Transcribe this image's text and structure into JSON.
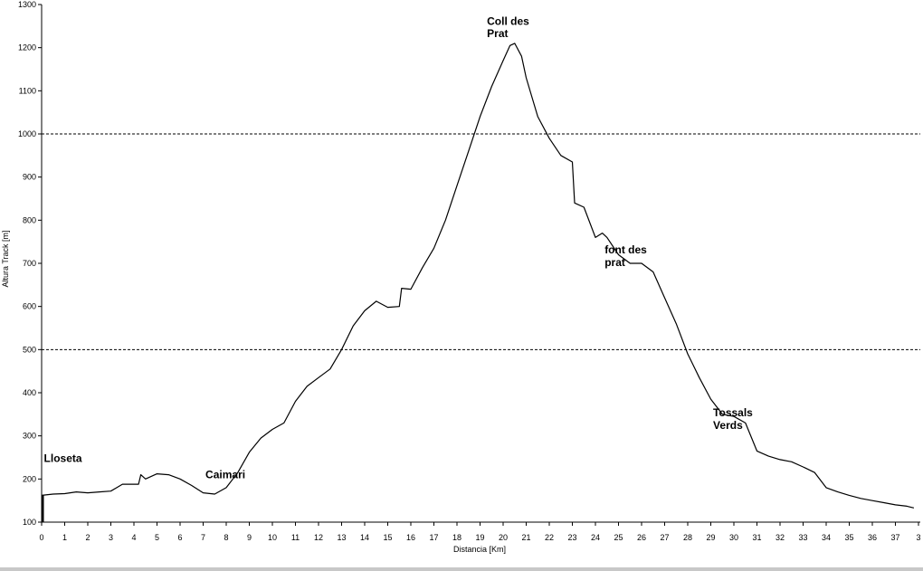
{
  "chart_data": {
    "type": "line",
    "title": "",
    "xlabel": "Distancia [Km]",
    "ylabel": "Altura Track [m]",
    "xlim": [
      0,
      38
    ],
    "ylim": [
      100,
      1300
    ],
    "x_ticks": [
      "0",
      "1",
      "2",
      "3",
      "4",
      "5",
      "6",
      "7",
      "8",
      "9",
      "10",
      "11",
      "12",
      "13",
      "14",
      "15",
      "16",
      "17",
      "18",
      "19",
      "20",
      "21",
      "22",
      "23",
      "24",
      "25",
      "26",
      "27",
      "28",
      "29",
      "30",
      "31",
      "32",
      "33",
      "34",
      "35",
      "36",
      "37",
      "3"
    ],
    "y_ticks": [
      100,
      200,
      300,
      400,
      500,
      600,
      700,
      800,
      900,
      1000,
      1100,
      1200,
      1300
    ],
    "grid": {
      "horizontal_dashed_at": [
        500,
        1000
      ],
      "vertical": false
    },
    "legend": "none",
    "line_color": "#000000",
    "series": [
      {
        "x": [
          0,
          0.5,
          1,
          1.5,
          2,
          2.5,
          3,
          3.5,
          4.2,
          4.3,
          4.5,
          5,
          5.5,
          6,
          6.5,
          7,
          7.5,
          8,
          8.5,
          9,
          9.5,
          10,
          10.5,
          11,
          11.5,
          12,
          12.5,
          13,
          13.5,
          14,
          14.5,
          15,
          15.5,
          15.6,
          16,
          16.5,
          17,
          17.5,
          18,
          18.5,
          19,
          19.5,
          20,
          20.3,
          20.5,
          20.8,
          21,
          21.5,
          22,
          22.5,
          23,
          23.1,
          23.5,
          24,
          24.3,
          24.5,
          25,
          25.5,
          26,
          26.5,
          27,
          27.5,
          28,
          28.5,
          29,
          29.5,
          30,
          30.5,
          31,
          31.5,
          32,
          32.5,
          33,
          33.5,
          34,
          34.5,
          35,
          35.5,
          36,
          36.5,
          37,
          37.5,
          37.8
        ],
        "y": [
          162,
          165,
          166,
          170,
          168,
          170,
          172,
          188,
          188,
          210,
          200,
          212,
          210,
          200,
          185,
          168,
          165,
          180,
          215,
          262,
          295,
          315,
          330,
          380,
          415,
          435,
          455,
          500,
          555,
          590,
          612,
          598,
          600,
          642,
          640,
          690,
          735,
          800,
          880,
          960,
          1040,
          1110,
          1170,
          1205,
          1210,
          1180,
          1130,
          1040,
          990,
          950,
          935,
          840,
          830,
          760,
          770,
          760,
          720,
          700,
          700,
          680,
          620,
          560,
          490,
          435,
          385,
          350,
          345,
          330,
          265,
          253,
          245,
          240,
          228,
          215,
          180,
          170,
          162,
          155,
          150,
          145,
          140,
          137,
          133
        ]
      }
    ],
    "annotations": [
      {
        "text": "Lloseta",
        "x": 0.1,
        "y": 240
      },
      {
        "text": "Caimari",
        "x": 7.1,
        "y": 202
      },
      {
        "text": "Coll des",
        "x": 19.3,
        "y": 1253
      },
      {
        "text": "Prat",
        "x": 19.3,
        "y": 1224
      },
      {
        "text": "font des",
        "x": 24.4,
        "y": 723
      },
      {
        "text": "prat",
        "x": 24.4,
        "y": 694
      },
      {
        "text": "Tossals",
        "x": 29.1,
        "y": 345
      },
      {
        "text": "Verds",
        "x": 29.1,
        "y": 316
      }
    ]
  }
}
